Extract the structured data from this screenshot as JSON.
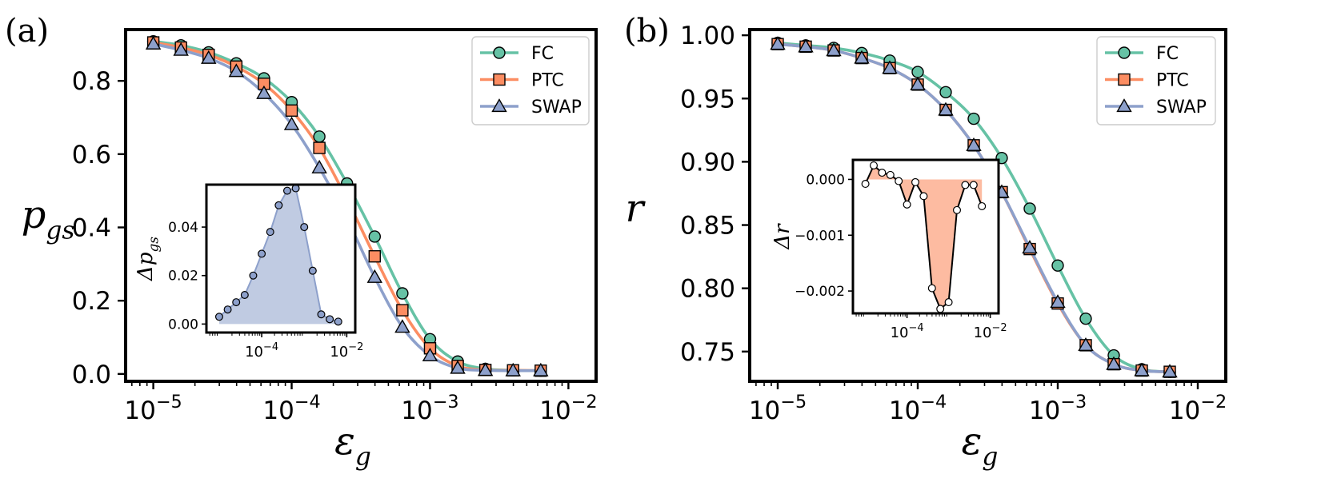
{
  "figure": {
    "colors": {
      "fc": "#66c2a5",
      "ptc": "#fc8d62",
      "swap": "#8da0cb",
      "axis": "#000000"
    }
  },
  "chart_data": [
    {
      "panel_label": "(a)",
      "type": "line",
      "xscale": "log",
      "xlim_exp": [
        -5.2,
        -1.8
      ],
      "ylim": [
        -0.02,
        0.94
      ],
      "xticks": [
        {
          "base": "10",
          "exp": "−5",
          "value_exp": -5
        },
        {
          "base": "10",
          "exp": "−4",
          "value_exp": -4
        },
        {
          "base": "10",
          "exp": "−3",
          "value_exp": -3
        },
        {
          "base": "10",
          "exp": "−2",
          "value_exp": -2
        }
      ],
      "yticks": [
        "0.0",
        "0.2",
        "0.4",
        "0.6",
        "0.8"
      ],
      "ytick_values": [
        0.0,
        0.2,
        0.4,
        0.6,
        0.8
      ],
      "ylabel": {
        "main": "p",
        "sub": "gs"
      },
      "xlabel": {
        "main": "ε",
        "sub": "g"
      },
      "legend": "top-right",
      "x_exp": [
        -5.0,
        -4.8,
        -4.6,
        -4.4,
        -4.2,
        -4.0,
        -3.8,
        -3.6,
        -3.4,
        -3.2,
        -3.0,
        -2.8,
        -2.6,
        -2.4,
        -2.2
      ],
      "series": [
        {
          "name": "FC",
          "marker": "circle",
          "color": "#66c2a5",
          "values": [
            0.908,
            0.897,
            0.878,
            0.848,
            0.807,
            0.742,
            0.648,
            0.52,
            0.375,
            0.22,
            0.095,
            0.034,
            0.014,
            0.01,
            0.009
          ]
        },
        {
          "name": "PTC",
          "marker": "square",
          "color": "#fc8d62",
          "values": [
            0.905,
            0.891,
            0.871,
            0.839,
            0.792,
            0.719,
            0.617,
            0.476,
            0.321,
            0.174,
            0.07,
            0.022,
            0.011,
            0.01,
            0.009
          ]
        },
        {
          "name": "SWAP",
          "marker": "triangle",
          "color": "#8da0cb",
          "values": [
            0.901,
            0.884,
            0.862,
            0.826,
            0.766,
            0.681,
            0.563,
            0.423,
            0.264,
            0.128,
            0.05,
            0.016,
            0.01,
            0.009,
            0.009
          ]
        }
      ],
      "inset": {
        "type": "area",
        "color": "#8da0cb",
        "ylabel": {
          "main": "Δp",
          "sub": "gs"
        },
        "xlim_exp": [
          -5.3,
          -1.8
        ],
        "ylim": [
          -0.0035,
          0.0575
        ],
        "yticks": [
          "0.00",
          "0.02",
          "0.04"
        ],
        "ytick_values": [
          0.0,
          0.02,
          0.04
        ],
        "xticks": [
          {
            "base": "10",
            "exp": "−4",
            "value_exp": -4
          },
          {
            "base": "10",
            "exp": "−2",
            "value_exp": -2
          }
        ],
        "x_exp": [
          -5.0,
          -4.8,
          -4.6,
          -4.4,
          -4.2,
          -4.0,
          -3.8,
          -3.6,
          -3.4,
          -3.2,
          -3.0,
          -2.8,
          -2.6,
          -2.4,
          -2.2
        ],
        "values": [
          0.003,
          0.006,
          0.009,
          0.012,
          0.02,
          0.029,
          0.038,
          0.049,
          0.055,
          0.056,
          0.04,
          0.022,
          0.004,
          0.002,
          0.001
        ]
      }
    },
    {
      "panel_label": "(b)",
      "type": "line",
      "xscale": "log",
      "xlim_exp": [
        -5.2,
        -1.8
      ],
      "ylim": [
        0.7265,
        1.0045
      ],
      "xticks": [
        {
          "base": "10",
          "exp": "−5",
          "value_exp": -5
        },
        {
          "base": "10",
          "exp": "−4",
          "value_exp": -4
        },
        {
          "base": "10",
          "exp": "−3",
          "value_exp": -3
        },
        {
          "base": "10",
          "exp": "−2",
          "value_exp": -2
        }
      ],
      "yticks": [
        "0.75",
        "0.80",
        "0.85",
        "0.90",
        "0.95",
        "1.00"
      ],
      "ytick_values": [
        0.75,
        0.8,
        0.85,
        0.9,
        0.95,
        1.0
      ],
      "ylabel": {
        "main": "r",
        "sub": ""
      },
      "xlabel": {
        "main": "ε",
        "sub": "g"
      },
      "legend": "top-right",
      "x_exp": [
        -5.0,
        -4.8,
        -4.6,
        -4.4,
        -4.2,
        -4.0,
        -3.8,
        -3.6,
        -3.4,
        -3.2,
        -3.0,
        -2.8,
        -2.6,
        -2.4,
        -2.2
      ],
      "series": [
        {
          "name": "FC",
          "marker": "circle",
          "color": "#66c2a5",
          "values": [
            0.994,
            0.992,
            0.99,
            0.986,
            0.98,
            0.971,
            0.955,
            0.934,
            0.903,
            0.863,
            0.818,
            0.776,
            0.747,
            0.736,
            0.734
          ]
        },
        {
          "name": "PTC",
          "marker": "square",
          "color": "#fc8d62",
          "values": [
            0.993,
            0.991,
            0.988,
            0.982,
            0.974,
            0.961,
            0.941,
            0.913,
            0.876,
            0.831,
            0.788,
            0.755,
            0.74,
            0.735,
            0.734
          ]
        },
        {
          "name": "SWAP",
          "marker": "triangle",
          "color": "#8da0cb",
          "values": [
            0.993,
            0.991,
            0.988,
            0.982,
            0.974,
            0.961,
            0.941,
            0.913,
            0.876,
            0.832,
            0.789,
            0.755,
            0.74,
            0.735,
            0.734
          ]
        }
      ],
      "inset": {
        "type": "area",
        "color": "#fc8d62",
        "ylabel": {
          "main": "Δr",
          "sub": ""
        },
        "xlim_exp": [
          -5.3,
          -1.8
        ],
        "ylim": [
          -0.0024,
          0.00035
        ],
        "yticks": [
          "0.000",
          "−0.001",
          "−0.002"
        ],
        "ytick_values": [
          0.0,
          -0.001,
          -0.002
        ],
        "xticks": [
          {
            "base": "10",
            "exp": "−4",
            "value_exp": -4
          },
          {
            "base": "10",
            "exp": "−2",
            "value_exp": -2
          }
        ],
        "x_exp": [
          -5.0,
          -4.8,
          -4.6,
          -4.4,
          -4.2,
          -4.0,
          -3.8,
          -3.6,
          -3.4,
          -3.2,
          -3.0,
          -2.8,
          -2.6,
          -2.4,
          -2.2
        ],
        "values": [
          -8e-05,
          0.00025,
          0.00012,
          8e-05,
          -3e-05,
          -0.00045,
          -5e-05,
          -0.0003,
          -0.00195,
          -0.00232,
          -0.0022,
          -0.00055,
          -0.0001,
          -0.0001,
          -0.00048
        ]
      }
    }
  ]
}
